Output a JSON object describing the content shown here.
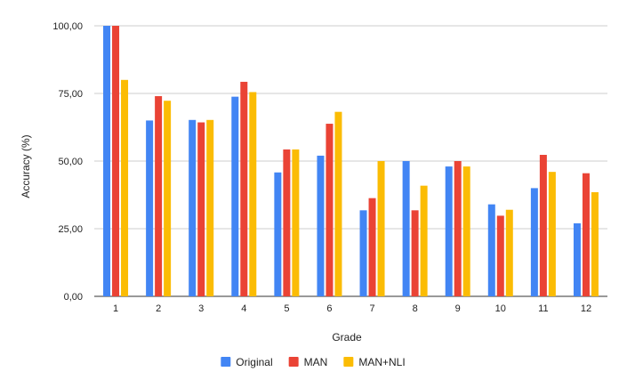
{
  "chart_data": {
    "type": "bar",
    "title": "",
    "xlabel": "Grade",
    "ylabel": "Accuracy (%)",
    "ylim": [
      0,
      100
    ],
    "yticks": [
      0,
      25,
      50,
      75,
      100
    ],
    "ytick_labels": [
      "0,00",
      "25,00",
      "50,00",
      "75,00",
      "100,00"
    ],
    "categories": [
      "1",
      "2",
      "3",
      "4",
      "5",
      "6",
      "7",
      "8",
      "9",
      "10",
      "11",
      "12"
    ],
    "series": [
      {
        "name": "Original",
        "color": "#4285F4",
        "values": [
          100,
          65,
          65.2,
          73.8,
          45.8,
          52,
          31.8,
          50,
          48,
          34,
          40,
          27
        ]
      },
      {
        "name": "MAN",
        "color": "#EA4335",
        "values": [
          100,
          74,
          64.3,
          79.3,
          54.3,
          63.8,
          36.3,
          31.8,
          50,
          29.8,
          52.3,
          45.5
        ]
      },
      {
        "name": "MAN+NLI",
        "color": "#FBBC04",
        "values": [
          80,
          72.3,
          65.2,
          75.5,
          54.3,
          68.2,
          50,
          40.9,
          48,
          32,
          46,
          38.5
        ]
      }
    ],
    "grid": true,
    "legend": "bottom"
  }
}
